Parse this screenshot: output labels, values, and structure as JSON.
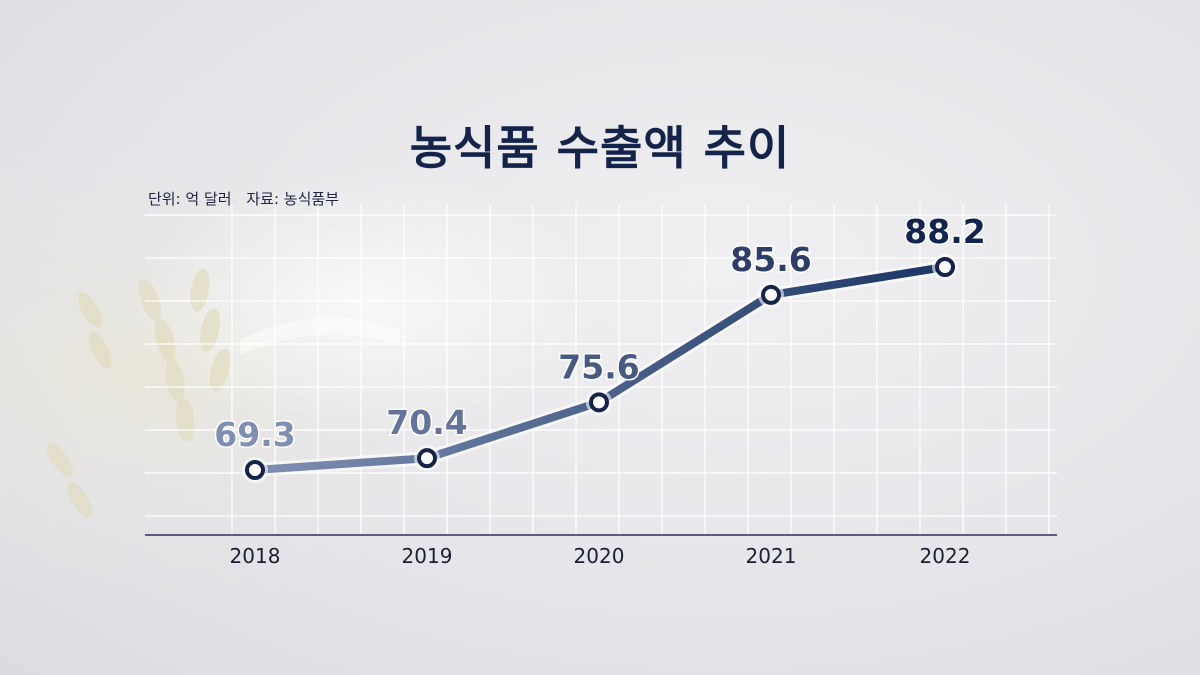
{
  "title": "농식품 수출액 추이",
  "unit_label": "단위: 억 달러",
  "source_label": "자료: 농식품부",
  "chart_data": {
    "type": "line",
    "categories": [
      "2018",
      "2019",
      "2020",
      "2021",
      "2022"
    ],
    "values": [
      69.3,
      70.4,
      75.6,
      85.6,
      88.2
    ],
    "data_labels": [
      "69.3",
      "70.4",
      "75.6",
      "85.6",
      "88.2"
    ],
    "ylim": [
      50,
      95
    ],
    "grid": true,
    "line_color_start": "#7f8fb2",
    "line_color_end": "#1b3565",
    "label_color_start": "#7f8fb2",
    "label_color_end": "#12244f"
  }
}
